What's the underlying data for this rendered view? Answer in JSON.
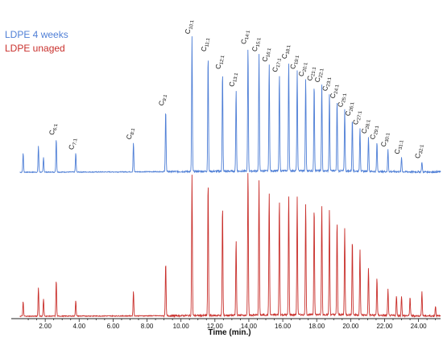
{
  "chart_data": {
    "type": "line",
    "title": "",
    "xlabel": "Time (min.)",
    "ylabel": "",
    "xlim": [
      0.0,
      25.3
    ],
    "grid": false,
    "legend_placement": "top-left, stacked",
    "x_ticks": [
      "2.00",
      "4.00",
      "6.00",
      "8.00",
      "10.00",
      "12.00",
      "14.00",
      "16.00",
      "18.00",
      "20.00",
      "22.00",
      "24.00"
    ],
    "series": [
      {
        "name": "LDPE 4 weeks",
        "color": "#4f7fd6",
        "baseline_hump": [
          [
            0.5,
            0.0
          ],
          [
            6,
            0.02
          ],
          [
            10,
            0.05
          ],
          [
            14,
            0.09
          ],
          [
            17,
            0.12
          ],
          [
            19.5,
            0.1
          ],
          [
            21.5,
            0.06
          ],
          [
            23.5,
            0.03
          ],
          [
            25.3,
            0.02
          ]
        ],
        "peaks": [
          {
            "t": 0.7,
            "h": 0.13
          },
          {
            "t": 1.6,
            "h": 0.18
          },
          {
            "t": 1.9,
            "h": 0.1
          },
          {
            "t": 2.65,
            "h": 0.23
          },
          {
            "t": 3.8,
            "h": 0.13
          },
          {
            "t": 7.2,
            "h": 0.2
          },
          {
            "t": 9.1,
            "h": 0.43
          },
          {
            "t": 10.65,
            "h": 0.92
          },
          {
            "t": 11.6,
            "h": 0.8
          },
          {
            "t": 12.45,
            "h": 0.68
          },
          {
            "t": 13.25,
            "h": 0.56
          },
          {
            "t": 13.95,
            "h": 0.85
          },
          {
            "t": 14.6,
            "h": 0.8
          },
          {
            "t": 15.2,
            "h": 0.73
          },
          {
            "t": 15.8,
            "h": 0.66
          },
          {
            "t": 16.35,
            "h": 0.75
          },
          {
            "t": 16.85,
            "h": 0.68
          },
          {
            "t": 17.35,
            "h": 0.63
          },
          {
            "t": 17.85,
            "h": 0.6
          },
          {
            "t": 18.3,
            "h": 0.59
          },
          {
            "t": 18.75,
            "h": 0.53
          },
          {
            "t": 19.2,
            "h": 0.48
          },
          {
            "t": 19.65,
            "h": 0.42
          },
          {
            "t": 20.1,
            "h": 0.36
          },
          {
            "t": 20.55,
            "h": 0.3
          },
          {
            "t": 21.05,
            "h": 0.24
          },
          {
            "t": 21.55,
            "h": 0.2
          },
          {
            "t": 22.2,
            "h": 0.15
          },
          {
            "t": 23.0,
            "h": 0.1
          },
          {
            "t": 24.2,
            "h": 0.07
          }
        ]
      },
      {
        "name": "LDPE unaged",
        "color": "#c9302c",
        "baseline_hump": [
          [
            0.5,
            0.0
          ],
          [
            8,
            0.03
          ],
          [
            12,
            0.06
          ],
          [
            16,
            0.11
          ],
          [
            19,
            0.13
          ],
          [
            21,
            0.09
          ],
          [
            23,
            0.04
          ],
          [
            25.3,
            0.02
          ]
        ],
        "peaks": [
          {
            "t": 0.7,
            "h": 0.1
          },
          {
            "t": 1.6,
            "h": 0.2
          },
          {
            "t": 1.9,
            "h": 0.12
          },
          {
            "t": 2.65,
            "h": 0.25
          },
          {
            "t": 3.8,
            "h": 0.11
          },
          {
            "t": 7.2,
            "h": 0.17
          },
          {
            "t": 9.1,
            "h": 0.37
          },
          {
            "t": 10.65,
            "h": 0.97
          },
          {
            "t": 11.6,
            "h": 0.93
          },
          {
            "t": 12.45,
            "h": 0.76
          },
          {
            "t": 13.25,
            "h": 0.52
          },
          {
            "t": 13.95,
            "h": 1.0
          },
          {
            "t": 14.6,
            "h": 0.93
          },
          {
            "t": 15.2,
            "h": 0.85
          },
          {
            "t": 15.8,
            "h": 0.8
          },
          {
            "t": 16.35,
            "h": 0.83
          },
          {
            "t": 16.85,
            "h": 0.81
          },
          {
            "t": 17.35,
            "h": 0.77
          },
          {
            "t": 17.85,
            "h": 0.75
          },
          {
            "t": 18.3,
            "h": 0.76
          },
          {
            "t": 18.75,
            "h": 0.73
          },
          {
            "t": 19.2,
            "h": 0.65
          },
          {
            "t": 19.65,
            "h": 0.6
          },
          {
            "t": 20.1,
            "h": 0.52
          },
          {
            "t": 20.55,
            "h": 0.45
          },
          {
            "t": 21.05,
            "h": 0.33
          },
          {
            "t": 21.55,
            "h": 0.26
          },
          {
            "t": 22.2,
            "h": 0.18
          },
          {
            "t": 22.7,
            "h": 0.14
          },
          {
            "t": 23.0,
            "h": 0.14
          },
          {
            "t": 23.5,
            "h": 0.13
          },
          {
            "t": 24.2,
            "h": 0.17
          },
          {
            "t": 25.0,
            "h": 0.07
          }
        ]
      }
    ],
    "annotations": [
      {
        "base": "C",
        "sub": "6:1",
        "t": 2.65
      },
      {
        "base": "C",
        "sub": "7:1",
        "t": 3.8
      },
      {
        "base": "C",
        "sub": "8:1",
        "t": 7.2
      },
      {
        "base": "C",
        "sub": "9:1",
        "t": 9.1
      },
      {
        "base": "C",
        "sub": "10:1",
        "t": 10.65
      },
      {
        "base": "C",
        "sub": "11:1",
        "t": 11.6
      },
      {
        "base": "C",
        "sub": "12:1",
        "t": 12.45
      },
      {
        "base": "C",
        "sub": "13:1",
        "t": 13.25
      },
      {
        "base": "C",
        "sub": "14:1",
        "t": 13.95
      },
      {
        "base": "C",
        "sub": "15:1",
        "t": 14.6
      },
      {
        "base": "C",
        "sub": "16:1",
        "t": 15.2
      },
      {
        "base": "C",
        "sub": "17:1",
        "t": 15.8
      },
      {
        "base": "C",
        "sub": "18:1",
        "t": 16.35
      },
      {
        "base": "C",
        "sub": "19:1",
        "t": 16.85
      },
      {
        "base": "C",
        "sub": "20:1",
        "t": 17.35
      },
      {
        "base": "C",
        "sub": "21:1",
        "t": 17.85
      },
      {
        "base": "C",
        "sub": "22:1",
        "t": 18.3
      },
      {
        "base": "C",
        "sub": "23:1",
        "t": 18.75
      },
      {
        "base": "C",
        "sub": "24:1",
        "t": 19.2
      },
      {
        "base": "C",
        "sub": "25:1",
        "t": 19.65
      },
      {
        "base": "C",
        "sub": "26:1",
        "t": 20.1
      },
      {
        "base": "C",
        "sub": "27:1",
        "t": 20.55
      },
      {
        "base": "C",
        "sub": "28:1",
        "t": 21.05
      },
      {
        "base": "C",
        "sub": "29:1",
        "t": 21.55
      },
      {
        "base": "C",
        "sub": "30:1",
        "t": 22.2
      },
      {
        "base": "C",
        "sub": "31:1",
        "t": 23.0
      },
      {
        "base": "C",
        "sub": "32:1",
        "t": 24.2
      }
    ]
  }
}
